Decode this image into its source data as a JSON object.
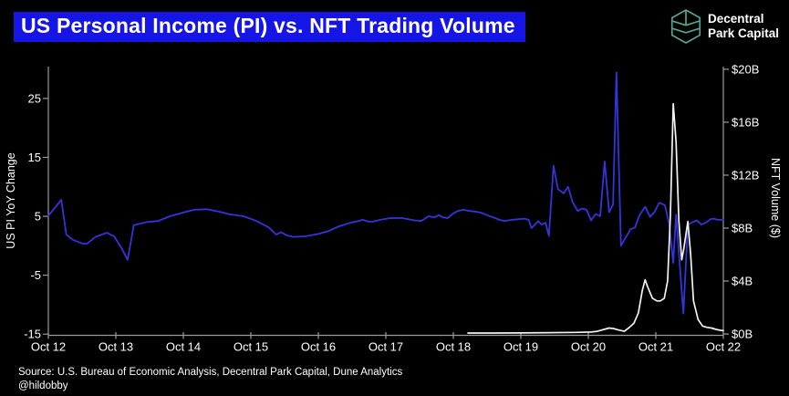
{
  "title": "US Personal Income (PI) vs. NFT Trading Volume",
  "logo": {
    "line1": "Decentral",
    "line2": "Park Capital",
    "icon": "hexagon-leaf",
    "icon_color": "#55a392"
  },
  "source_line": "Source: U.S. Bureau of Economic Analysis, Decentral Park Capital, Dune Analytics",
  "handle": "@hildobby",
  "colors": {
    "background": "#000000",
    "title_bg": "#1515e6",
    "title_text": "#ffffff",
    "axis": "#9a9a9a",
    "tick_text": "#ffffff",
    "pi_line": "#3434dd",
    "nft_line": "#f2f2f2"
  },
  "chart_data": {
    "type": "line",
    "title": "US Personal Income (PI) vs. NFT Trading Volume",
    "grid": false,
    "legend": "none",
    "x_axis": {
      "unit": "months since Oct 2012",
      "min": 0,
      "max": 120,
      "ticks": [
        {
          "m": 0,
          "label": "Oct 12"
        },
        {
          "m": 12,
          "label": "Oct 13"
        },
        {
          "m": 24,
          "label": "Oct 14"
        },
        {
          "m": 36,
          "label": "Oct 15"
        },
        {
          "m": 48,
          "label": "Oct 16"
        },
        {
          "m": 60,
          "label": "Oct 17"
        },
        {
          "m": 72,
          "label": "Oct 18"
        },
        {
          "m": 84,
          "label": "Oct 19"
        },
        {
          "m": 96,
          "label": "Oct 20"
        },
        {
          "m": 108,
          "label": "Oct 21"
        },
        {
          "m": 120,
          "label": "Oct 22"
        }
      ]
    },
    "left_axis": {
      "label": "US PI YoY Change",
      "range": [
        -15.2,
        30.4
      ],
      "ticks": [
        {
          "v": 25,
          "label": "25"
        },
        {
          "v": 15,
          "label": "15"
        },
        {
          "v": 5,
          "label": "5"
        },
        {
          "v": -5,
          "label": "-5"
        },
        {
          "v": -15,
          "label": "-15"
        }
      ]
    },
    "right_axis": {
      "label": "NFT Volume ($)",
      "range": [
        -0.1,
        20.2
      ],
      "ticks": [
        {
          "v": 20,
          "label": "$20B"
        },
        {
          "v": 16,
          "label": "$16B"
        },
        {
          "v": 12,
          "label": "$12B"
        },
        {
          "v": 8,
          "label": "$8B"
        },
        {
          "v": 4,
          "label": "$4B"
        },
        {
          "v": 0,
          "label": "$0B"
        }
      ]
    },
    "series": [
      {
        "name": "US PI YoY Change (%)",
        "axis": "left",
        "color_key": "pi_line",
        "points": [
          [
            0,
            5.1
          ],
          [
            2.3,
            7.8
          ],
          [
            3.2,
            1.9
          ],
          [
            4.4,
            1.0
          ],
          [
            6,
            0.4
          ],
          [
            6.8,
            0.3
          ],
          [
            8.4,
            1.5
          ],
          [
            10.4,
            2.2
          ],
          [
            11.7,
            1.6
          ],
          [
            13,
            -0.4
          ],
          [
            14.1,
            -2.4
          ],
          [
            15.2,
            3.5
          ],
          [
            17.4,
            4.0
          ],
          [
            19.5,
            4.2
          ],
          [
            21.6,
            5.0
          ],
          [
            23.8,
            5.6
          ],
          [
            25.9,
            6.1
          ],
          [
            28.2,
            6.2
          ],
          [
            30.3,
            5.8
          ],
          [
            32.4,
            5.3
          ],
          [
            34.7,
            5.0
          ],
          [
            37,
            4.2
          ],
          [
            39.2,
            3.1
          ],
          [
            40.5,
            1.9
          ],
          [
            41.4,
            2.3
          ],
          [
            42.3,
            1.8
          ],
          [
            43.5,
            1.5
          ],
          [
            45.7,
            1.6
          ],
          [
            48,
            2.0
          ],
          [
            49.8,
            2.5
          ],
          [
            51.7,
            3.3
          ],
          [
            53.7,
            3.9
          ],
          [
            55.1,
            4.2
          ],
          [
            55.9,
            4.4
          ],
          [
            56.9,
            4.1
          ],
          [
            57.7,
            4.1
          ],
          [
            59,
            4.4
          ],
          [
            60.8,
            4.7
          ],
          [
            62.9,
            4.7
          ],
          [
            65.2,
            4.3
          ],
          [
            66.3,
            4.2
          ],
          [
            67.6,
            5.0
          ],
          [
            68.6,
            4.8
          ],
          [
            69.4,
            5.2
          ],
          [
            70.2,
            4.8
          ],
          [
            71,
            4.7
          ],
          [
            72,
            5.5
          ],
          [
            72.8,
            5.9
          ],
          [
            73.8,
            6.1
          ],
          [
            74.9,
            5.9
          ],
          [
            75.9,
            5.8
          ],
          [
            77,
            5.6
          ],
          [
            78,
            5.2
          ],
          [
            79.1,
            4.8
          ],
          [
            80.2,
            4.4
          ],
          [
            81.2,
            4.2
          ],
          [
            82.4,
            4.4
          ],
          [
            83.5,
            4.5
          ],
          [
            84.6,
            4.6
          ],
          [
            85.4,
            4.4
          ],
          [
            85.9,
            3.0
          ],
          [
            87.1,
            4.2
          ],
          [
            87.7,
            3.6
          ],
          [
            88.4,
            3.9
          ],
          [
            89,
            1.7
          ],
          [
            89.8,
            13.6
          ],
          [
            90.6,
            9.6
          ],
          [
            91.6,
            8.9
          ],
          [
            92.4,
            10.0
          ],
          [
            93.2,
            7.4
          ],
          [
            94.1,
            5.9
          ],
          [
            94.9,
            6.3
          ],
          [
            95.7,
            6.1
          ],
          [
            96.5,
            4.3
          ],
          [
            97.3,
            5.4
          ],
          [
            98.1,
            5.0
          ],
          [
            98.9,
            14.3
          ],
          [
            99.7,
            5.7
          ],
          [
            100.4,
            7.0
          ],
          [
            101,
            29.4
          ],
          [
            101.8,
            0.0
          ],
          [
            102.7,
            1.5
          ],
          [
            103.5,
            2.8
          ],
          [
            104.3,
            3.1
          ],
          [
            105.1,
            5.2
          ],
          [
            106.1,
            6.6
          ],
          [
            107,
            4.9
          ],
          [
            107.8,
            5.8
          ],
          [
            108.6,
            7.3
          ],
          [
            109.6,
            6.9
          ],
          [
            110.4,
            3.6
          ],
          [
            111.1,
            -2.9
          ],
          [
            111.6,
            5.3
          ],
          [
            112.9,
            -11.5
          ],
          [
            113.7,
            3.6
          ],
          [
            114.5,
            4.0
          ],
          [
            115.3,
            4.3
          ],
          [
            116.1,
            3.6
          ],
          [
            116.9,
            3.9
          ],
          [
            117.7,
            4.5
          ],
          [
            118.3,
            4.6
          ],
          [
            119,
            4.4
          ],
          [
            120,
            4.4
          ]
        ]
      },
      {
        "name": "NFT Trading Volume ($B)",
        "axis": "right",
        "color_key": "nft_line",
        "points": [
          [
            74.6,
            0.07
          ],
          [
            79,
            0.07
          ],
          [
            83.8,
            0.08
          ],
          [
            88.7,
            0.1
          ],
          [
            93.6,
            0.12
          ],
          [
            96.5,
            0.15
          ],
          [
            97.6,
            0.2
          ],
          [
            98.8,
            0.35
          ],
          [
            99.7,
            0.45
          ],
          [
            100.4,
            0.42
          ],
          [
            101.4,
            0.3
          ],
          [
            102.4,
            0.2
          ],
          [
            103.3,
            0.5
          ],
          [
            104.1,
            0.8
          ],
          [
            104.9,
            1.6
          ],
          [
            105.6,
            3.3
          ],
          [
            106.1,
            4.1
          ],
          [
            106.5,
            3.6
          ],
          [
            107.4,
            2.7
          ],
          [
            108.2,
            2.5
          ],
          [
            108.8,
            2.5
          ],
          [
            109.5,
            2.7
          ],
          [
            110.1,
            4.0
          ],
          [
            110.6,
            9.0
          ],
          [
            111.1,
            17.4
          ],
          [
            111.6,
            14.5
          ],
          [
            112.1,
            8.5
          ],
          [
            112.6,
            5.6
          ],
          [
            113,
            6.5
          ],
          [
            113.7,
            8.5
          ],
          [
            114.2,
            6.0
          ],
          [
            114.7,
            2.5
          ],
          [
            115.5,
            1.1
          ],
          [
            116.3,
            0.6
          ],
          [
            117.1,
            0.5
          ],
          [
            117.9,
            0.45
          ],
          [
            118.7,
            0.35
          ],
          [
            119.5,
            0.28
          ],
          [
            120,
            0.25
          ]
        ]
      }
    ]
  }
}
